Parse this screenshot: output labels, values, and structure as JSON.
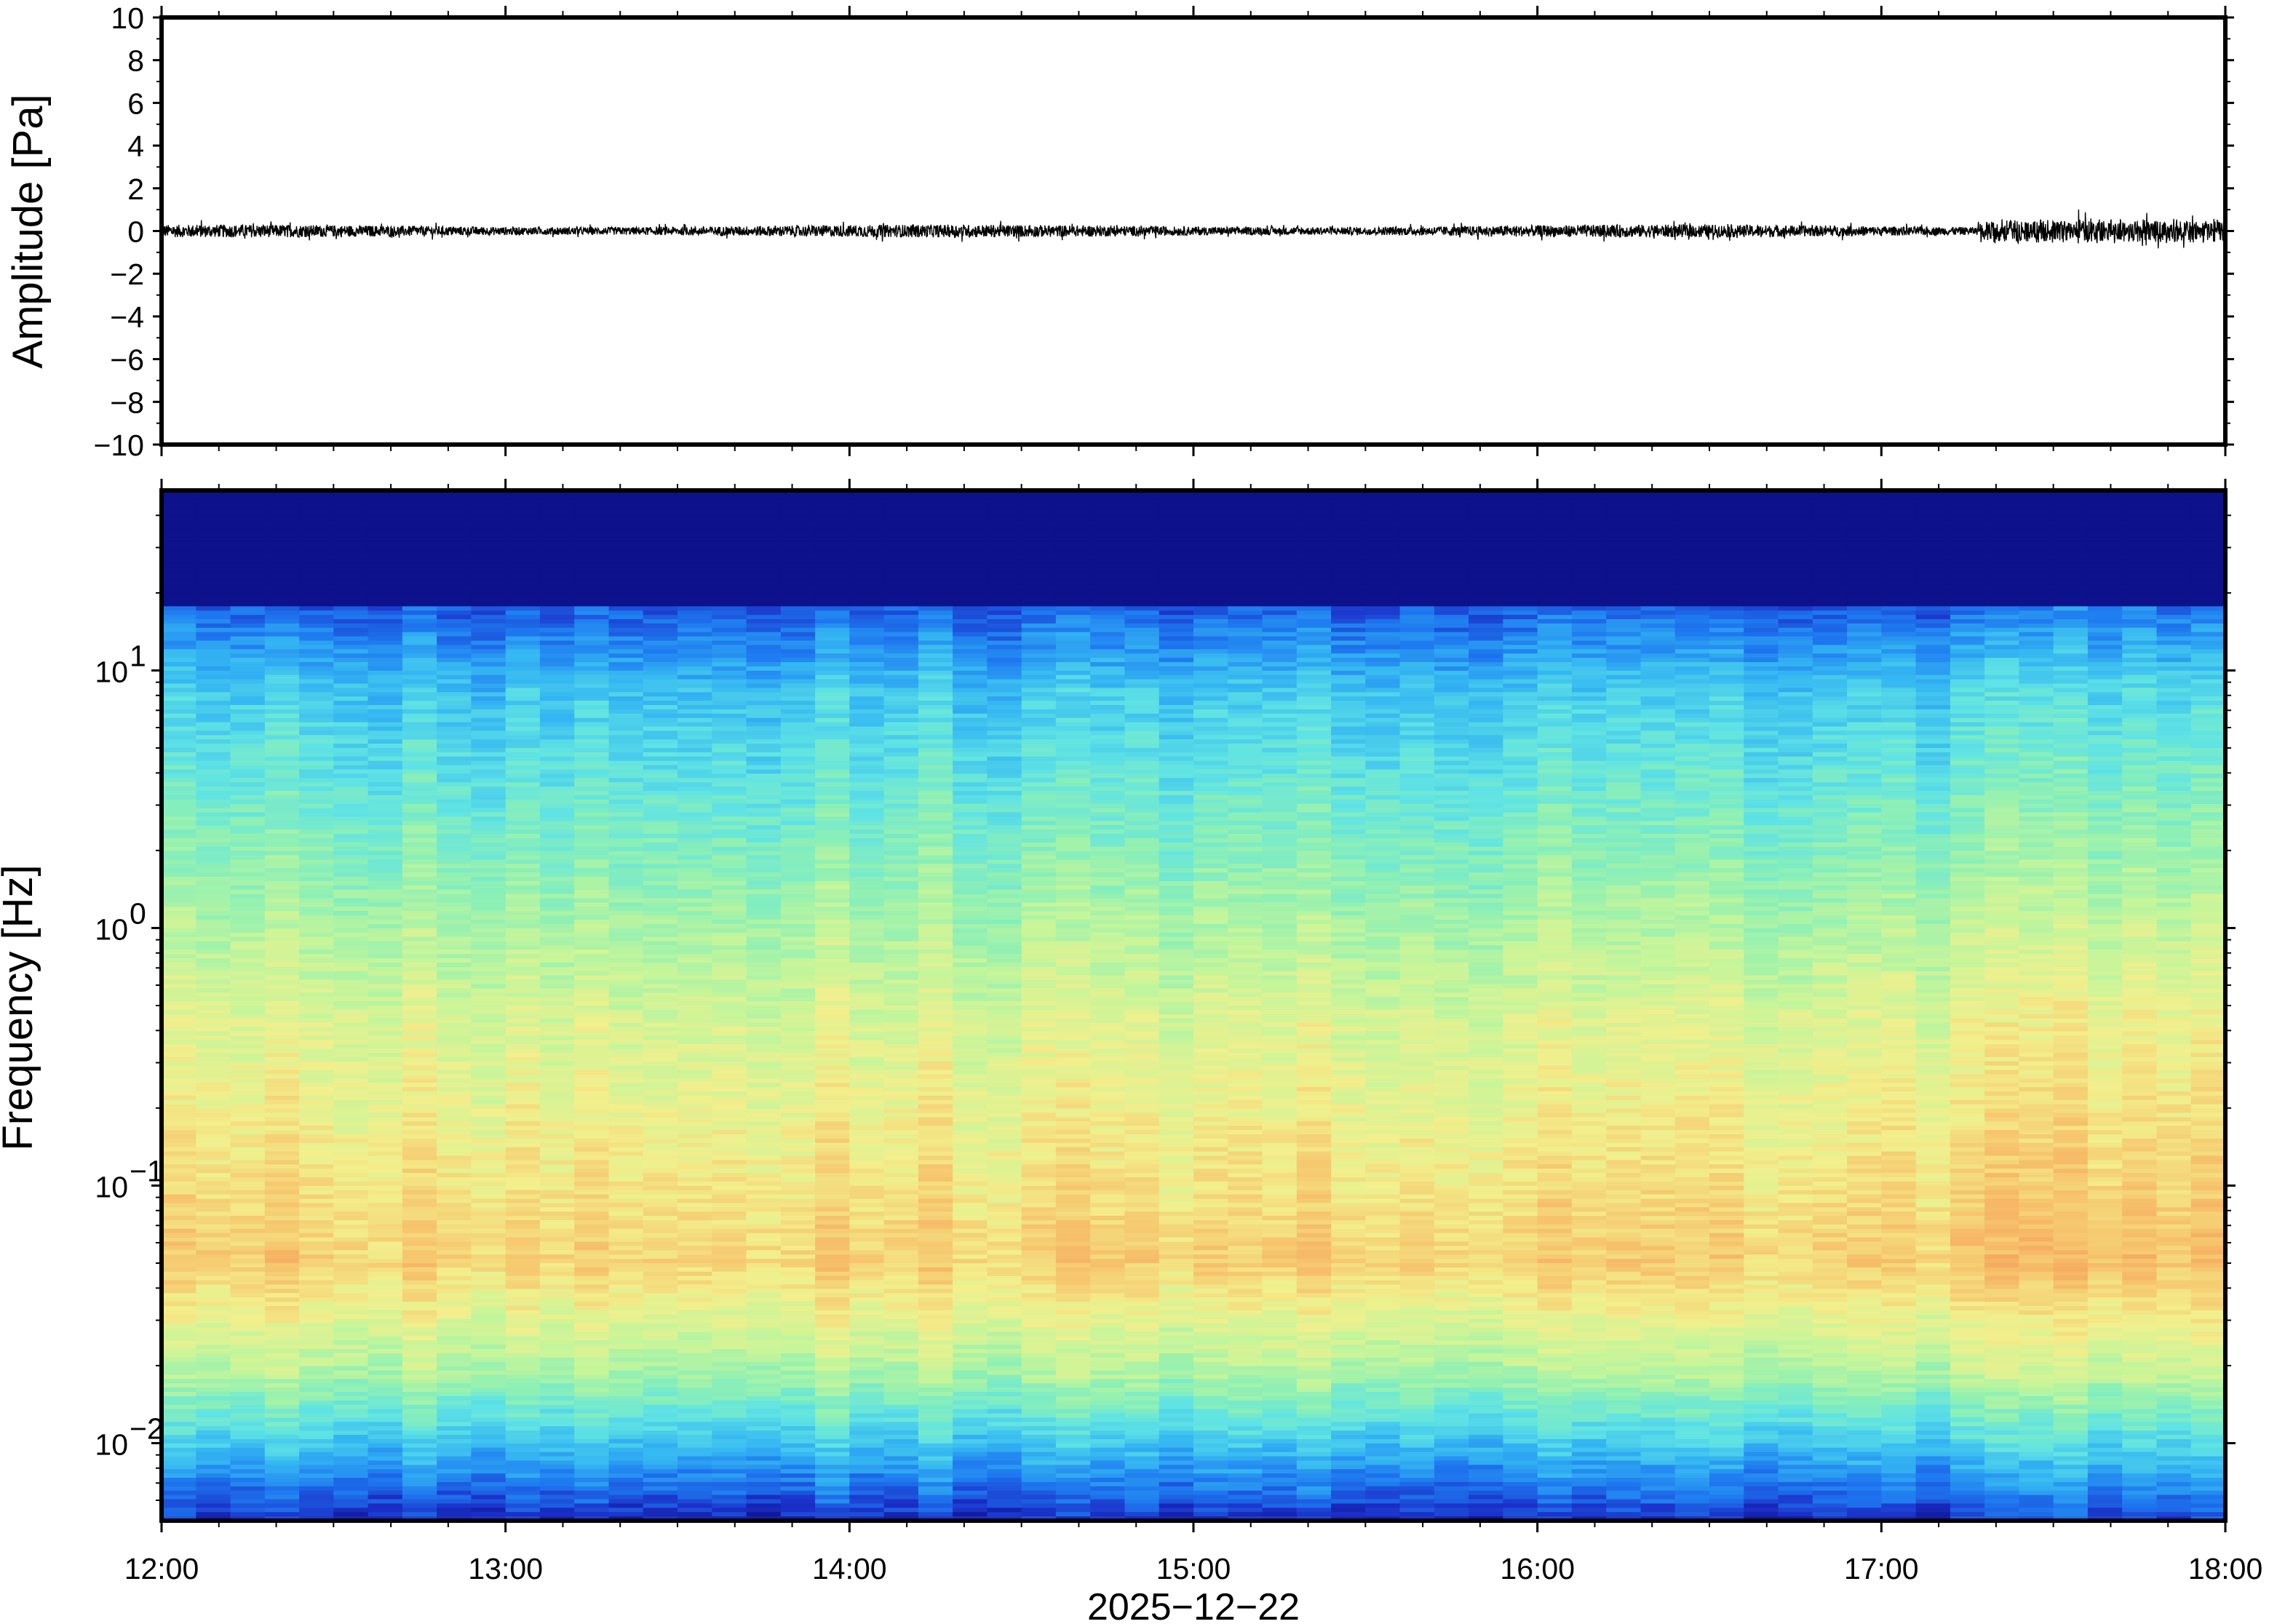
{
  "chart_data": [
    {
      "type": "line",
      "panel": "waveform",
      "ylabel": "Amplitude [Pa]",
      "ylim": [
        -10,
        10
      ],
      "yticks": [
        10,
        8,
        6,
        4,
        2,
        0,
        -2,
        -4,
        -6,
        -8,
        -10
      ],
      "ytick_labels": [
        "10",
        "8",
        "6",
        "4",
        "2",
        "0",
        "−2",
        "−4",
        "−6",
        "−8",
        "−10"
      ],
      "xlim": [
        "12:00",
        "18:00"
      ],
      "series_color": "#000000",
      "signal_description_values": {
        "baseline": 0,
        "typical_peak_amplitude": 0.3,
        "max_peak_amplitude_late": 0.6
      }
    },
    {
      "type": "heatmap",
      "panel": "spectrogram",
      "ylabel": "Frequency [Hz]",
      "yscale": "log",
      "ylim": [
        0.005,
        50
      ],
      "yticks": [
        10,
        1,
        0.1,
        0.01
      ],
      "ytick_labels": [
        {
          "base": "10",
          "exp": "1"
        },
        {
          "base": "10",
          "exp": "0"
        },
        {
          "base": "10",
          "exp": "−1"
        },
        {
          "base": "10",
          "exp": "−2"
        }
      ],
      "xlim": [
        "12:00",
        "18:00"
      ],
      "colormap": [
        "#0a0a7d",
        "#1b2fc8",
        "#1e78f0",
        "#34b6f2",
        "#5fe3e4",
        "#8ef0b4",
        "#c6f59a",
        "#f2ef8c",
        "#f6c66e",
        "#f5a05a"
      ],
      "time_columns": 60,
      "frequency_rows": 240
    }
  ],
  "xaxis": {
    "tick_labels": [
      "12:00",
      "13:00",
      "14:00",
      "15:00",
      "16:00",
      "17:00",
      "18:00"
    ],
    "date_label": "2025−12−22"
  }
}
